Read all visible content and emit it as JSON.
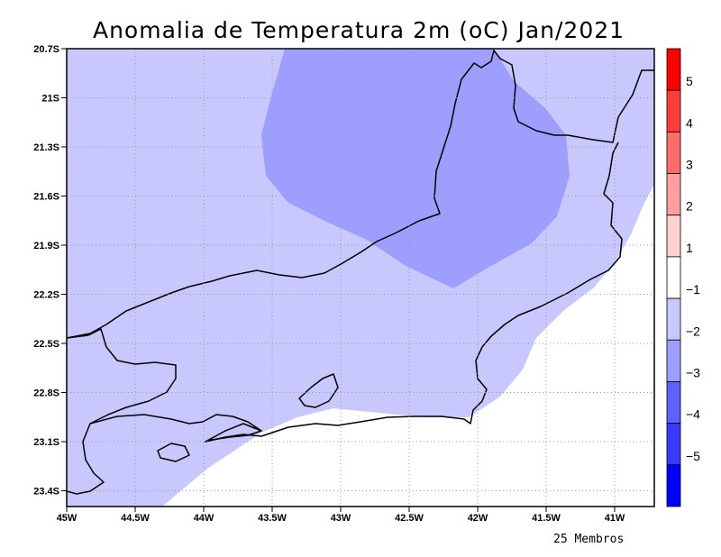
{
  "title": "Anomalia de Temperatura 2m (oC) Jan/2021",
  "footer": "25 Membros",
  "lon_ticks": [
    "45W",
    "44.5W",
    "44W",
    "43.5W",
    "43W",
    "42.5W",
    "42W",
    "41.5W",
    "41W"
  ],
  "lat_ticks": [
    "20.7S",
    "21S",
    "21.3S",
    "21.6S",
    "21.9S",
    "22.2S",
    "22.5S",
    "22.8S",
    "23.1S",
    "23.4S"
  ],
  "colorbar": {
    "labels": [
      "5",
      "4",
      "3",
      "2",
      "1",
      "−1",
      "−2",
      "−3",
      "−4",
      "−5"
    ],
    "colors": [
      "#ff0000",
      "#ff3c3c",
      "#ff6c6c",
      "#ffa0a0",
      "#ffd0d0",
      "#ffffff",
      "#c8c8ff",
      "#9e9eff",
      "#6060ff",
      "#3a3aff",
      "#0000ff"
    ]
  },
  "fills": {
    "minus1_to_minus2": "#c8c8ff",
    "minus2_to_minus3": "#9e9eff",
    "no_anomaly": "#ffffff"
  }
}
